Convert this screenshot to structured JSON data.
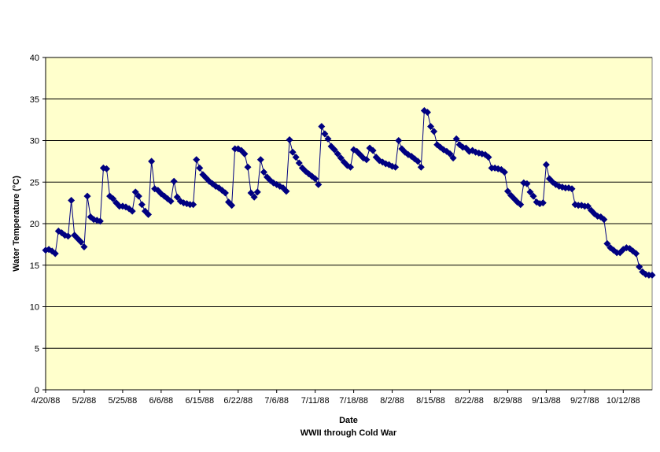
{
  "chart_data": {
    "type": "line",
    "x_label": "Date",
    "x_sublabel": "WWII through Cold War",
    "y_label": "Water Temperature (°C)",
    "categories": [
      "4/20/88",
      null,
      null,
      null,
      null,
      null,
      null,
      null,
      null,
      null,
      null,
      null,
      "5/2/88",
      null,
      null,
      null,
      null,
      null,
      null,
      null,
      null,
      null,
      null,
      null,
      "5/25/88",
      null,
      null,
      null,
      null,
      null,
      null,
      null,
      null,
      null,
      null,
      null,
      "6/6/88",
      null,
      null,
      null,
      null,
      null,
      null,
      null,
      null,
      null,
      null,
      null,
      "6/15/88",
      null,
      null,
      null,
      null,
      null,
      null,
      null,
      null,
      null,
      null,
      null,
      "6/22/88",
      null,
      null,
      null,
      null,
      null,
      null,
      null,
      null,
      null,
      null,
      null,
      "7/6/88",
      null,
      null,
      null,
      null,
      null,
      null,
      null,
      null,
      null,
      null,
      null,
      "7/11/88",
      null,
      null,
      null,
      null,
      null,
      null,
      null,
      null,
      null,
      null,
      null,
      "7/18/88",
      null,
      null,
      null,
      null,
      null,
      null,
      null,
      null,
      null,
      null,
      null,
      "8/2/88",
      null,
      null,
      null,
      null,
      null,
      null,
      null,
      null,
      null,
      null,
      null,
      "8/15/88",
      null,
      null,
      null,
      null,
      null,
      null,
      null,
      null,
      null,
      null,
      null,
      "8/22/88",
      null,
      null,
      null,
      null,
      null,
      null,
      null,
      null,
      null,
      null,
      null,
      "8/29/88",
      null,
      null,
      null,
      null,
      null,
      null,
      null,
      null,
      null,
      null,
      null,
      "9/13/88",
      null,
      null,
      null,
      null,
      null,
      null,
      null,
      null,
      null,
      null,
      null,
      "9/27/88",
      null,
      null,
      null,
      null,
      null,
      null,
      null,
      null,
      null,
      null,
      null,
      "10/12/88",
      null,
      null,
      null,
      null,
      null,
      null,
      null,
      null,
      null
    ],
    "values": [
      16.8,
      16.9,
      16.7,
      16.4,
      19.1,
      18.9,
      18.6,
      18.5,
      22.8,
      18.6,
      18.2,
      17.8,
      17.2,
      23.3,
      20.8,
      20.5,
      20.4,
      20.3,
      26.7,
      26.6,
      23.3,
      23.0,
      22.5,
      22.1,
      22.1,
      22.0,
      21.8,
      21.5,
      23.8,
      23.3,
      22.3,
      21.5,
      21.1,
      27.5,
      24.2,
      24.0,
      23.6,
      23.3,
      23.0,
      22.7,
      25.1,
      23.2,
      22.7,
      22.5,
      22.4,
      22.3,
      22.3,
      27.7,
      26.7,
      25.9,
      25.5,
      25.1,
      24.8,
      24.5,
      24.3,
      24.0,
      23.7,
      22.6,
      22.2,
      29.0,
      29.0,
      28.8,
      28.4,
      26.8,
      23.7,
      23.2,
      23.8,
      27.7,
      26.2,
      25.6,
      25.2,
      24.9,
      24.7,
      24.5,
      24.3,
      23.9,
      30.1,
      28.6,
      28.0,
      27.3,
      26.7,
      26.3,
      26.0,
      25.7,
      25.4,
      24.7,
      31.7,
      30.8,
      30.2,
      29.3,
      28.9,
      28.4,
      27.9,
      27.4,
      27.0,
      26.8,
      28.9,
      28.7,
      28.3,
      27.9,
      27.7,
      29.1,
      28.8,
      28.0,
      27.6,
      27.4,
      27.2,
      27.1,
      26.9,
      26.8,
      30.0,
      29.0,
      28.6,
      28.3,
      28.1,
      27.8,
      27.5,
      26.8,
      33.6,
      33.4,
      31.7,
      31.1,
      29.5,
      29.2,
      28.9,
      28.7,
      28.4,
      27.9,
      30.2,
      29.5,
      29.2,
      29.1,
      28.7,
      28.8,
      28.6,
      28.5,
      28.4,
      28.3,
      28.0,
      26.7,
      26.7,
      26.6,
      26.5,
      26.2,
      23.9,
      23.4,
      23.0,
      22.6,
      22.3,
      24.9,
      24.8,
      23.8,
      23.3,
      22.6,
      22.4,
      22.5,
      27.1,
      25.4,
      25.0,
      24.7,
      24.5,
      24.4,
      24.3,
      24.3,
      24.2,
      22.3,
      22.2,
      22.2,
      22.1,
      22.1,
      21.6,
      21.2,
      20.9,
      20.8,
      20.5,
      17.6,
      17.1,
      16.8,
      16.5,
      16.5,
      16.9,
      17.1,
      17.0,
      16.7,
      16.4,
      14.8,
      14.2,
      13.9,
      13.8,
      13.8
    ],
    "color": "#000080",
    "plot_background": "#ffffcc",
    "ylim": [
      0,
      40
    ],
    "yticks": [
      0,
      5,
      10,
      15,
      20,
      25,
      30,
      35,
      40
    ],
    "grid": true
  }
}
